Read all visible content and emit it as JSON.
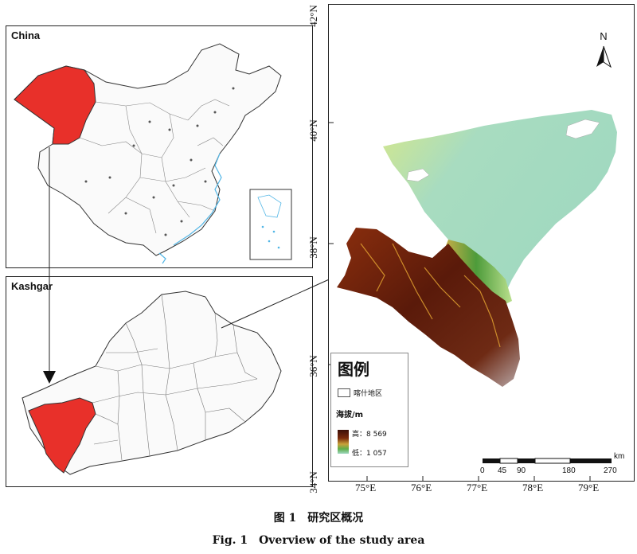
{
  "panels": {
    "china_label": "China",
    "kashgar_label": "Kashgar"
  },
  "map": {
    "lat_ticks": [
      "42°N",
      "40°N",
      "38°N",
      "36°N",
      "34°N"
    ],
    "lon_ticks": [
      "75°E",
      "76°E",
      "77°E",
      "78°E",
      "79°E"
    ],
    "north_label": "N",
    "scale": {
      "unit": "km",
      "labels": [
        "0",
        "45",
        "90",
        "180",
        "270"
      ]
    }
  },
  "legend": {
    "title": "图例",
    "region_item": "喀什地区",
    "elevation_title": "海拔/m",
    "high_label": "高：8 569",
    "low_label": "低：1 057",
    "colors": {
      "high": "#3b0f08",
      "mid_dark": "#7a2a0c",
      "mid": "#c9a23a",
      "low": "#5fae4a",
      "plain": "#9fd8c0"
    }
  },
  "colors": {
    "highlight_region": "#e8302a",
    "sea_blue": "#52b6e6"
  },
  "caption": {
    "cn": "图 1　研究区概况",
    "en": "Fig. 1　Overview of the study area"
  }
}
